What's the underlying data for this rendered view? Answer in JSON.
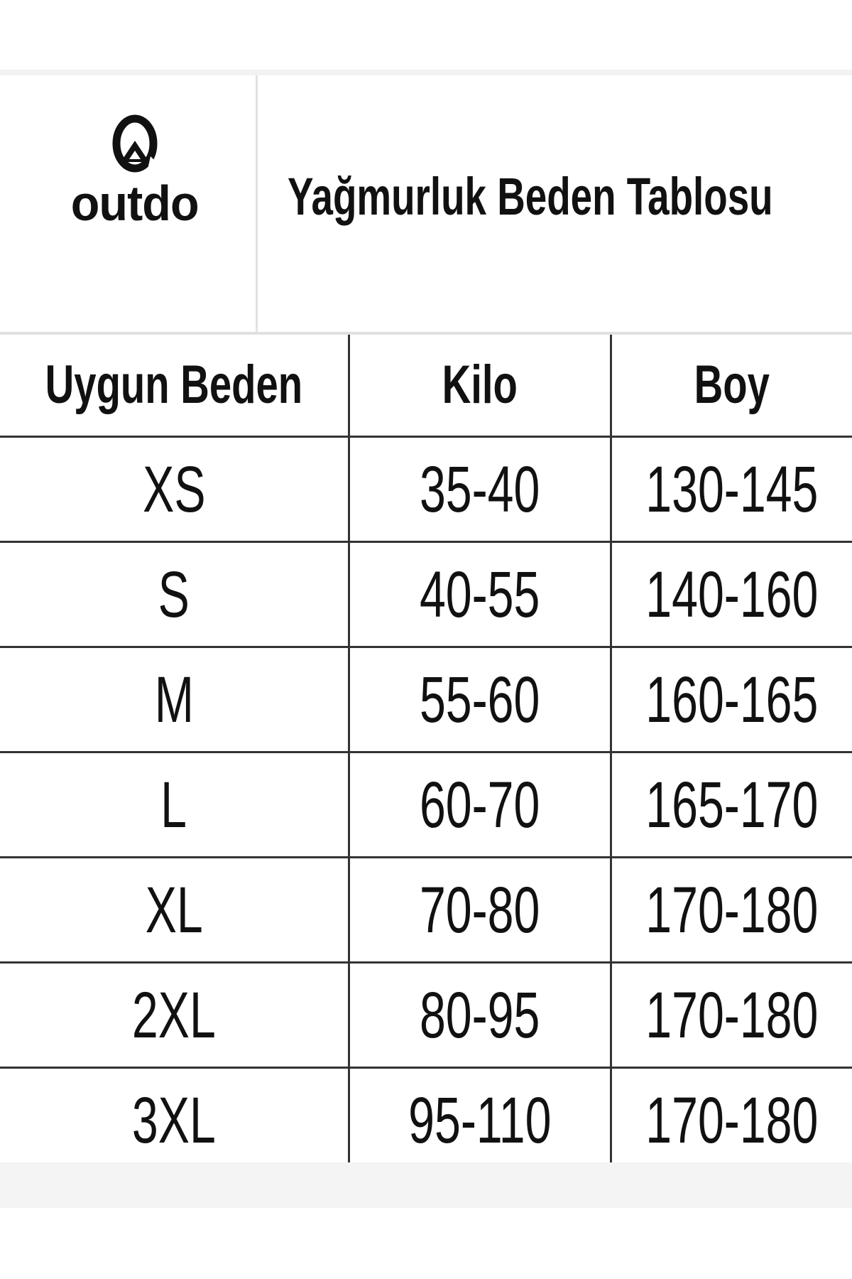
{
  "brand": {
    "name": "outdo",
    "logo_icon": "mountain-circle-icon"
  },
  "title": "Yağmurluk Beden Tablosu",
  "table": {
    "headers": [
      "Uygun Beden",
      "Kilo",
      "Boy"
    ],
    "rows": [
      [
        "XS",
        "35-40",
        "130-145"
      ],
      [
        "S",
        "40-55",
        "140-160"
      ],
      [
        "M",
        "55-60",
        "160-165"
      ],
      [
        "L",
        "60-70",
        "165-170"
      ],
      [
        "XL",
        "70-80",
        "170-180"
      ],
      [
        "2XL",
        "80-95",
        "170-180"
      ],
      [
        "3XL",
        "95-110",
        "170-180"
      ]
    ]
  }
}
